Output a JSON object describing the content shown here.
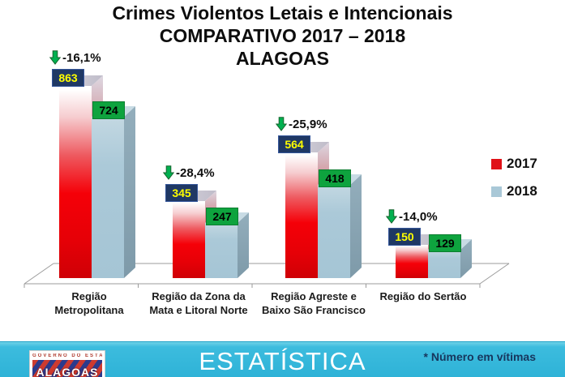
{
  "title": {
    "line1": "Crimes Violentos Letais e Intencionais",
    "line2": "COMPARATIVO 2017 – 2018",
    "line3": "ALAGOAS"
  },
  "chart_data": {
    "type": "bar",
    "style": "3d-clustered-bar",
    "title": "Crimes Violentos Letais e Intencionais COMPARATIVO 2017 – 2018 ALAGOAS",
    "categories": [
      "Região\nMetropolitana",
      "Região da Zona da\nMata e Litoral Norte",
      "Região Agreste e\nBaixo São Francisco",
      "Região do Sertão"
    ],
    "series": [
      {
        "name": "2017",
        "color": "#e01118",
        "values": [
          863,
          345,
          564,
          150
        ]
      },
      {
        "name": "2018",
        "color": "#a9c8d7",
        "values": [
          724,
          247,
          418,
          129
        ]
      }
    ],
    "change_labels": [
      "-16,1%",
      "-28,4%",
      "-25,9%",
      "-14,0%"
    ],
    "value_label_colors": {
      "2017": {
        "bg": "#1f3864",
        "text": "#ffff00"
      },
      "2018": {
        "bg": "#0ea33e",
        "text": "#000000"
      }
    },
    "arrow_color": "#00b050",
    "ylim": [
      0,
      900
    ],
    "grid": false,
    "legend_position": "right",
    "footnote": "* Número em vítimas"
  },
  "footer": {
    "banner_text": "ESTATÍSTICA",
    "note": "* Número em vítimas",
    "banner_color": "#2bb0d5",
    "logo": {
      "top_text": "GOVERNO DO ESTADO",
      "name": "ALAGOAS"
    }
  }
}
